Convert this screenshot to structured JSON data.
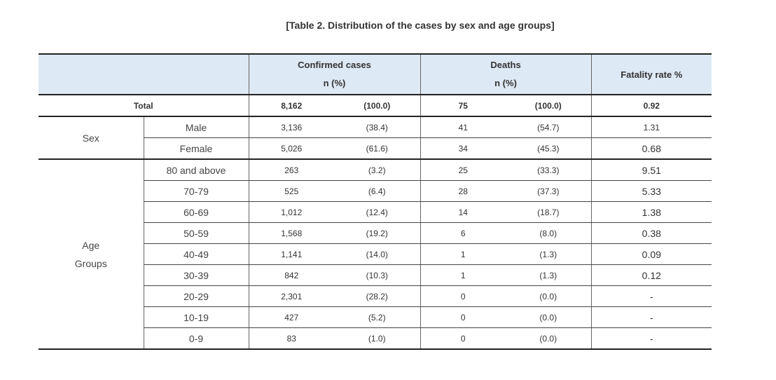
{
  "caption": "[Table 2. Distribution of the cases by sex and age groups]",
  "headers": {
    "confirmed_line1": "Confirmed cases",
    "confirmed_line2": "n (%)",
    "deaths_line1": "Deaths",
    "deaths_line2": "n (%)",
    "fatality": "Fatality rate %"
  },
  "total": {
    "label": "Total",
    "cases": "8,162",
    "cases_pct": "(100.0)",
    "deaths": "75",
    "deaths_pct": "(100.0)",
    "rate": "0.92"
  },
  "sex": {
    "label": "Sex",
    "rows": [
      {
        "label": "Male",
        "cases": "3,136",
        "cases_pct": "(38.4)",
        "deaths": "41",
        "deaths_pct": "(54.7)",
        "rate": "1.31"
      },
      {
        "label": "Female",
        "cases": "5,026",
        "cases_pct": "(61.6)",
        "deaths": "34",
        "deaths_pct": "(45.3)",
        "rate": "0.68"
      }
    ]
  },
  "age": {
    "label_line1": "Age",
    "label_line2": "Groups",
    "rows": [
      {
        "label": "80 and above",
        "cases": "263",
        "cases_pct": "(3.2)",
        "deaths": "25",
        "deaths_pct": "(33.3)",
        "rate": "9.51"
      },
      {
        "label": "70-79",
        "cases": "525",
        "cases_pct": "(6.4)",
        "deaths": "28",
        "deaths_pct": "(37.3)",
        "rate": "5.33"
      },
      {
        "label": "60-69",
        "cases": "1,012",
        "cases_pct": "(12.4)",
        "deaths": "14",
        "deaths_pct": "(18.7)",
        "rate": "1.38"
      },
      {
        "label": "50-59",
        "cases": "1,568",
        "cases_pct": "(19.2)",
        "deaths": "6",
        "deaths_pct": "(8.0)",
        "rate": "0.38"
      },
      {
        "label": "40-49",
        "cases": "1,141",
        "cases_pct": "(14.0)",
        "deaths": "1",
        "deaths_pct": "(1.3)",
        "rate": "0.09"
      },
      {
        "label": "30-39",
        "cases": "842",
        "cases_pct": "(10.3)",
        "deaths": "1",
        "deaths_pct": "(1.3)",
        "rate": "0.12"
      },
      {
        "label": "20-29",
        "cases": "2,301",
        "cases_pct": "(28.2)",
        "deaths": "0",
        "deaths_pct": "(0.0)",
        "rate": "-"
      },
      {
        "label": "10-19",
        "cases": "427",
        "cases_pct": "(5.2)",
        "deaths": "0",
        "deaths_pct": "(0.0)",
        "rate": "-"
      },
      {
        "label": "0-9",
        "cases": "83",
        "cases_pct": "(1.0)",
        "deaths": "0",
        "deaths_pct": "(0.0)",
        "rate": "-"
      }
    ]
  }
}
